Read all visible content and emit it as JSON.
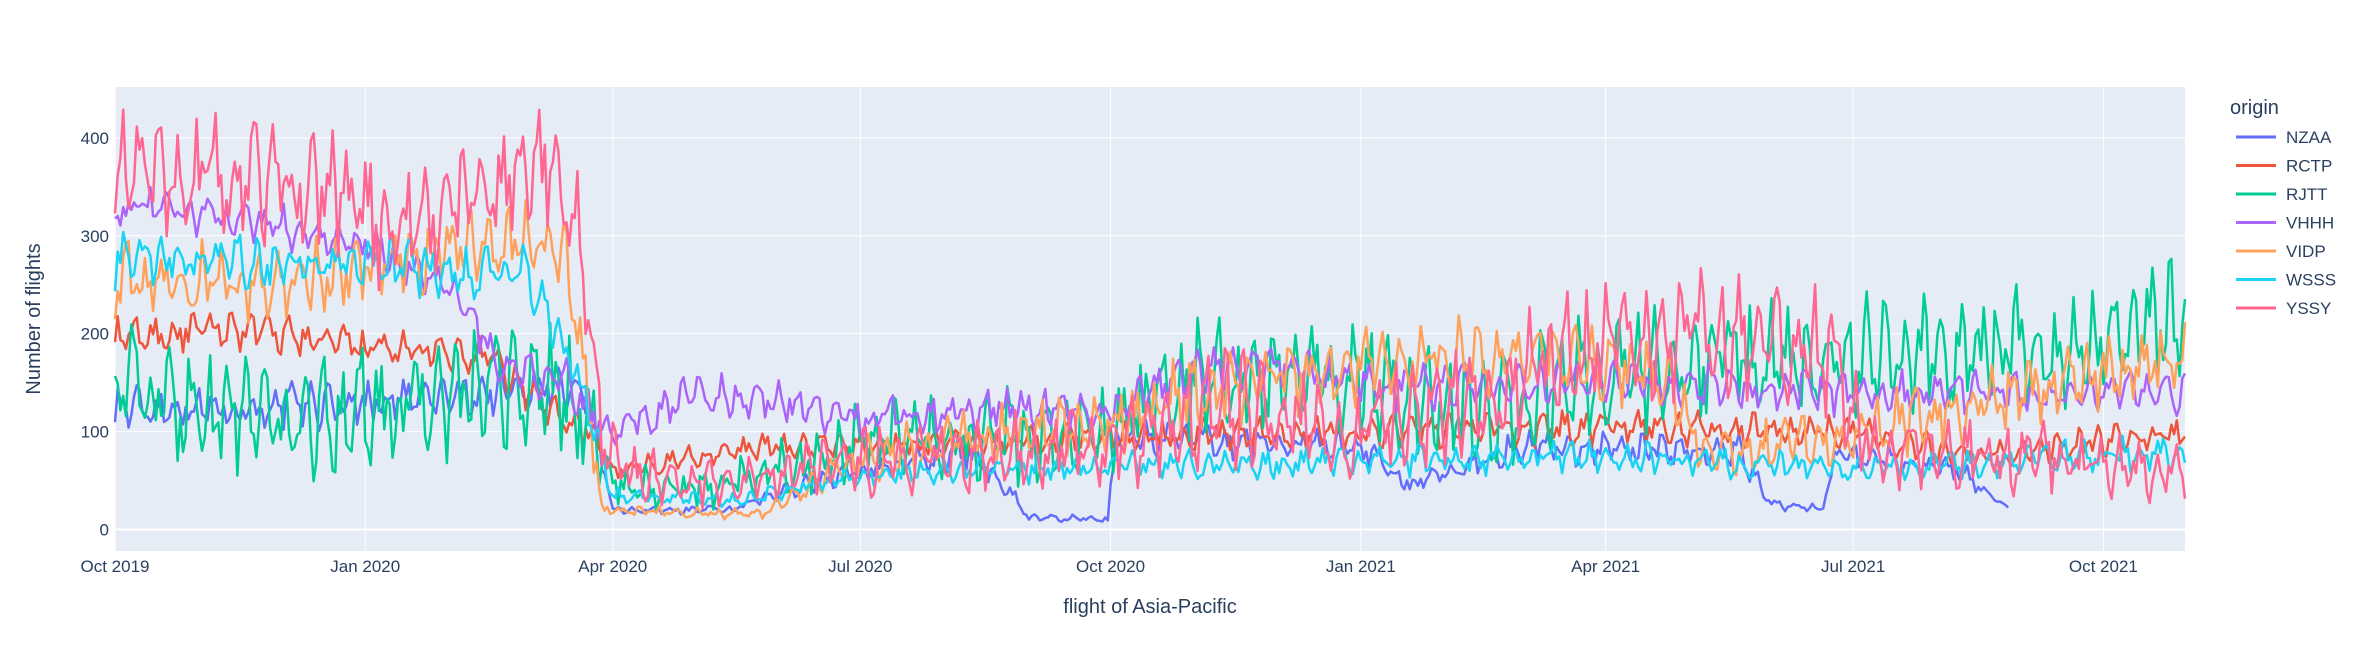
{
  "chart_data": {
    "type": "line",
    "title": "",
    "xlabel": "flight of Asia-Pacific",
    "ylabel": "Number of flights",
    "x_range": [
      "2019-10-01",
      "2021-10-31"
    ],
    "ylim": [
      -22,
      452
    ],
    "y_ticks": [
      0,
      100,
      200,
      300,
      400
    ],
    "x_ticks": [
      {
        "date": "2019-10-01",
        "label": "Oct 2019"
      },
      {
        "date": "2020-01-01",
        "label": "Jan 2020"
      },
      {
        "date": "2020-04-01",
        "label": "Apr 2020"
      },
      {
        "date": "2020-07-01",
        "label": "Jul 2020"
      },
      {
        "date": "2020-10-01",
        "label": "Oct 2020"
      },
      {
        "date": "2021-01-01",
        "label": "Jan 2021"
      },
      {
        "date": "2021-04-01",
        "label": "Apr 2021"
      },
      {
        "date": "2021-07-01",
        "label": "Jul 2021"
      },
      {
        "date": "2021-10-01",
        "label": "Oct 2021"
      }
    ],
    "legend": {
      "title": "origin",
      "position": "right"
    },
    "grid": true,
    "series": [
      {
        "name": "NZAA",
        "color": "#636efa",
        "end": "2021-08-27",
        "amp": 22,
        "points": [
          [
            "2019-10-01",
            125
          ],
          [
            "2019-12-01",
            125
          ],
          [
            "2020-02-01",
            135
          ],
          [
            "2020-03-10",
            150
          ],
          [
            "2020-03-24",
            120
          ],
          [
            "2020-04-01",
            20
          ],
          [
            "2020-05-15",
            20
          ],
          [
            "2020-06-15",
            50
          ],
          [
            "2020-07-20",
            70
          ],
          [
            "2020-08-10",
            80
          ],
          [
            "2020-08-25",
            40
          ],
          [
            "2020-09-01",
            12
          ],
          [
            "2020-09-30",
            10
          ],
          [
            "2020-10-03",
            95
          ],
          [
            "2021-01-01",
            85
          ],
          [
            "2021-01-20",
            45
          ],
          [
            "2021-03-01",
            85
          ],
          [
            "2021-05-20",
            80
          ],
          [
            "2021-06-01",
            25
          ],
          [
            "2021-06-20",
            22
          ],
          [
            "2021-06-25",
            80
          ],
          [
            "2021-08-10",
            60
          ],
          [
            "2021-08-27",
            20
          ]
        ]
      },
      {
        "name": "RCTP",
        "color": "#ef553b",
        "end": "2021-10-31",
        "amp": 18,
        "points": [
          [
            "2019-10-01",
            195
          ],
          [
            "2019-11-15",
            205
          ],
          [
            "2020-01-01",
            185
          ],
          [
            "2020-02-15",
            175
          ],
          [
            "2020-03-05",
            130
          ],
          [
            "2020-03-25",
            95
          ],
          [
            "2020-04-01",
            60
          ],
          [
            "2020-05-01",
            75
          ],
          [
            "2020-06-01",
            85
          ],
          [
            "2020-07-01",
            85
          ],
          [
            "2020-10-01",
            95
          ],
          [
            "2021-01-01",
            100
          ],
          [
            "2021-04-01",
            105
          ],
          [
            "2021-07-01",
            100
          ],
          [
            "2021-08-15",
            75
          ],
          [
            "2021-10-31",
            100
          ]
        ]
      },
      {
        "name": "RJTT",
        "color": "#00cc96",
        "end": "2021-10-31",
        "amp": 55,
        "points": [
          [
            "2019-10-01",
            165
          ],
          [
            "2019-10-15",
            130
          ],
          [
            "2019-11-10",
            120
          ],
          [
            "2019-12-10",
            110
          ],
          [
            "2020-01-01",
            120
          ],
          [
            "2020-02-15",
            140
          ],
          [
            "2020-03-10",
            145
          ],
          [
            "2020-03-25",
            110
          ],
          [
            "2020-04-01",
            45
          ],
          [
            "2020-05-01",
            40
          ],
          [
            "2020-06-01",
            60
          ],
          [
            "2020-07-01",
            85
          ],
          [
            "2020-09-01",
            95
          ],
          [
            "2020-10-01",
            100
          ],
          [
            "2020-11-01",
            155
          ],
          [
            "2021-01-01",
            150
          ],
          [
            "2021-02-15",
            115
          ],
          [
            "2021-04-01",
            165
          ],
          [
            "2021-07-01",
            175
          ],
          [
            "2021-09-15",
            185
          ],
          [
            "2021-10-31",
            215
          ]
        ]
      },
      {
        "name": "VHHH",
        "color": "#ab63fa",
        "end": "2021-10-31",
        "amp": 20,
        "points": [
          [
            "2019-10-01",
            330
          ],
          [
            "2019-11-15",
            320
          ],
          [
            "2020-01-01",
            290
          ],
          [
            "2020-02-01",
            250
          ],
          [
            "2020-02-20",
            165
          ],
          [
            "2020-03-15",
            150
          ],
          [
            "2020-03-25",
            115
          ],
          [
            "2020-04-01",
            100
          ],
          [
            "2020-05-01",
            140
          ],
          [
            "2020-06-01",
            130
          ],
          [
            "2020-07-01",
            115
          ],
          [
            "2020-09-01",
            125
          ],
          [
            "2020-10-01",
            120
          ],
          [
            "2020-11-01",
            160
          ],
          [
            "2020-12-01",
            170
          ],
          [
            "2021-01-01",
            145
          ],
          [
            "2021-04-01",
            150
          ],
          [
            "2021-07-01",
            140
          ],
          [
            "2021-10-31",
            140
          ]
        ]
      },
      {
        "name": "VIDP",
        "color": "#ffa15a",
        "end": "2021-10-31",
        "amp": 35,
        "points": [
          [
            "2019-10-01",
            255
          ],
          [
            "2019-12-01",
            250
          ],
          [
            "2020-01-01",
            265
          ],
          [
            "2020-03-01",
            300
          ],
          [
            "2020-03-15",
            270
          ],
          [
            "2020-03-22",
            150
          ],
          [
            "2020-03-28",
            20
          ],
          [
            "2020-05-25",
            15
          ],
          [
            "2020-06-10",
            40
          ],
          [
            "2020-07-01",
            75
          ],
          [
            "2020-10-01",
            110
          ],
          [
            "2020-11-01",
            140
          ],
          [
            "2021-01-01",
            170
          ],
          [
            "2021-03-01",
            180
          ],
          [
            "2021-04-20",
            160
          ],
          [
            "2021-05-10",
            80
          ],
          [
            "2021-07-01",
            95
          ],
          [
            "2021-08-15",
            130
          ],
          [
            "2021-10-31",
            175
          ]
        ]
      },
      {
        "name": "WSSS",
        "color": "#19d3f3",
        "end": "2021-10-31",
        "amp": 25,
        "points": [
          [
            "2019-10-01",
            275
          ],
          [
            "2020-01-01",
            270
          ],
          [
            "2020-03-01",
            260
          ],
          [
            "2020-03-20",
            150
          ],
          [
            "2020-04-01",
            35
          ],
          [
            "2020-05-15",
            30
          ],
          [
            "2020-07-01",
            55
          ],
          [
            "2020-10-01",
            65
          ],
          [
            "2021-01-01",
            70
          ],
          [
            "2021-04-01",
            75
          ],
          [
            "2021-07-01",
            60
          ],
          [
            "2021-10-31",
            80
          ]
        ]
      },
      {
        "name": "YSSY",
        "color": "#ff6692",
        "end": "2021-10-31",
        "amp": 55,
        "points": [
          [
            "2019-10-01",
            370
          ],
          [
            "2019-12-20",
            350
          ],
          [
            "2020-01-10",
            300
          ],
          [
            "2020-02-15",
            350
          ],
          [
            "2020-03-10",
            370
          ],
          [
            "2020-03-20",
            300
          ],
          [
            "2020-03-28",
            100
          ],
          [
            "2020-04-10",
            55
          ],
          [
            "2020-05-15",
            45
          ],
          [
            "2020-07-01",
            70
          ],
          [
            "2020-10-01",
            85
          ],
          [
            "2020-11-15",
            130
          ],
          [
            "2021-01-01",
            95
          ],
          [
            "2021-02-15",
            140
          ],
          [
            "2021-04-01",
            190
          ],
          [
            "2021-05-15",
            200
          ],
          [
            "2021-06-25",
            180
          ],
          [
            "2021-07-05",
            85
          ],
          [
            "2021-10-31",
            60
          ]
        ]
      }
    ]
  }
}
